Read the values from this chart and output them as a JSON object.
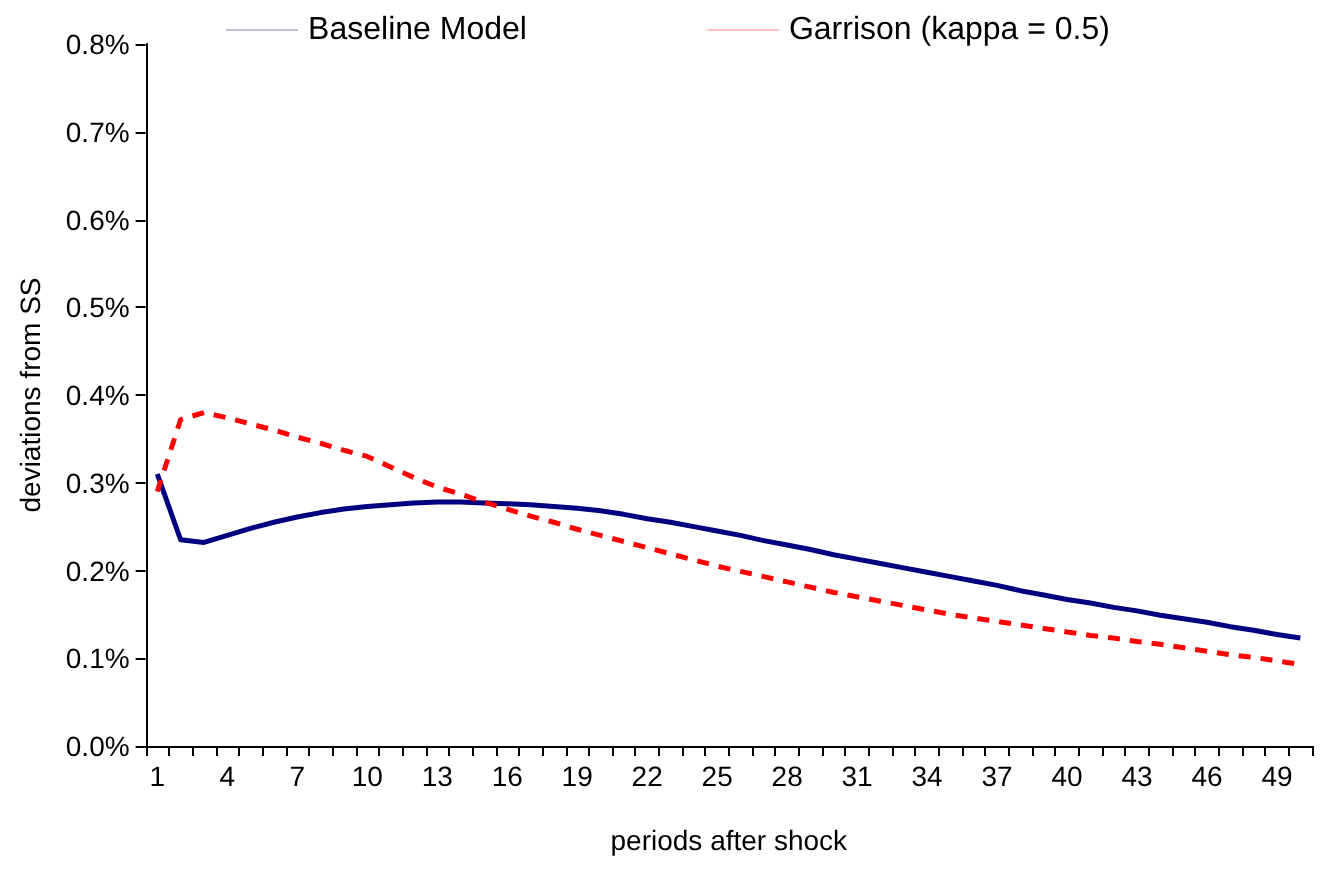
{
  "chart_data": {
    "type": "line",
    "xlabel": "periods after shock",
    "ylabel": "deviations from SS",
    "categories": [
      "1",
      null,
      null,
      "4",
      null,
      null,
      "7",
      null,
      null,
      "10",
      null,
      null,
      "13",
      null,
      null,
      "16",
      null,
      null,
      "19",
      null,
      null,
      "22",
      null,
      null,
      "25",
      null,
      null,
      "28",
      null,
      null,
      "31",
      null,
      null,
      "34",
      null,
      null,
      "37",
      null,
      null,
      "40",
      null,
      null,
      "43",
      null,
      null,
      "46",
      null,
      null,
      "49",
      null
    ],
    "series": [
      {
        "name": "Baseline Model",
        "color": "#000080",
        "line_style": "solid",
        "values": [
          0.31,
          0.235,
          0.232,
          0.24,
          0.248,
          0.255,
          0.261,
          0.266,
          0.27,
          0.273,
          0.275,
          0.277,
          0.278,
          0.278,
          0.277,
          0.276,
          0.275,
          0.273,
          0.271,
          0.268,
          0.264,
          0.259,
          0.255,
          0.25,
          0.245,
          0.24,
          0.234,
          0.229,
          0.224,
          0.218,
          0.213,
          0.208,
          0.203,
          0.198,
          0.193,
          0.188,
          0.183,
          0.177,
          0.172,
          0.167,
          0.163,
          0.158,
          0.154,
          0.149,
          0.145,
          0.141,
          0.136,
          0.132,
          0.127,
          0.123
        ]
      },
      {
        "name": "Garrison (kappa = 0.5)",
        "color": "#ff0000",
        "line_style": "dashed",
        "values": [
          0.29,
          0.372,
          0.38,
          0.374,
          0.367,
          0.36,
          0.352,
          0.345,
          0.337,
          0.33,
          0.318,
          0.306,
          0.295,
          0.287,
          0.278,
          0.27,
          0.262,
          0.255,
          0.247,
          0.24,
          0.233,
          0.226,
          0.219,
          0.212,
          0.205,
          0.199,
          0.193,
          0.187,
          0.181,
          0.175,
          0.17,
          0.165,
          0.16,
          0.155,
          0.15,
          0.146,
          0.142,
          0.138,
          0.134,
          0.13,
          0.126,
          0.123,
          0.119,
          0.116,
          0.112,
          0.108,
          0.104,
          0.101,
          0.097,
          0.093
        ]
      }
    ],
    "ylim": [
      0,
      0.8
    ],
    "yticks": [
      {
        "value": 0,
        "label": "0.0%"
      },
      {
        "value": 0.1,
        "label": "0.1%"
      },
      {
        "value": 0.2,
        "label": "0.2%"
      },
      {
        "value": 0.3,
        "label": "0.3%"
      },
      {
        "value": 0.4,
        "label": "0.4%"
      },
      {
        "value": 0.5,
        "label": "0.5%"
      },
      {
        "value": 0.6,
        "label": "0.6%"
      },
      {
        "value": 0.7,
        "label": "0.7%"
      },
      {
        "value": 0.8,
        "label": "0.8%"
      }
    ],
    "legend": "top",
    "marker": "none"
  }
}
